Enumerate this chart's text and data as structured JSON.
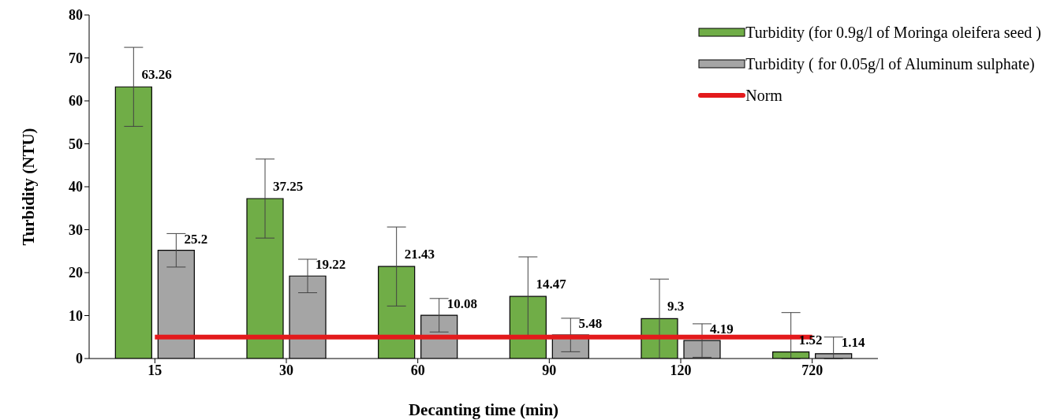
{
  "chart_data": {
    "type": "bar",
    "xlabel": "Decanting time (min)",
    "ylabel": "Turbidity (NTU)",
    "categories": [
      "15",
      "30",
      "60",
      "90",
      "120",
      "720"
    ],
    "series": [
      {
        "name": "Turbidity (for 0.9g/l of Moringa oleifera seed )",
        "color": "#70ad47",
        "values": [
          63.26,
          37.25,
          21.43,
          14.47,
          9.3,
          1.52
        ],
        "value_labels": [
          "63.26",
          "37.25",
          "21.43",
          "14.47",
          "9.3",
          "1.52"
        ],
        "errors": [
          9.2,
          9.2,
          9.2,
          9.2,
          9.2,
          [
            0,
            10.7
          ]
        ]
      },
      {
        "name": "Turbidity ( for 0.05g/l of Aluminum sulphate)",
        "color": "#a5a5a5",
        "values": [
          25.2,
          19.22,
          10.08,
          5.48,
          4.19,
          1.14
        ],
        "value_labels": [
          "25.2",
          "19.22",
          "10.08",
          "5.48",
          "4.19",
          "1.14"
        ],
        "errors": [
          3.9,
          3.9,
          3.9,
          3.9,
          3.9,
          [
            0,
            5.0
          ]
        ]
      },
      {
        "name": "Norm",
        "type": "line",
        "color": "#e31a1c",
        "values": [
          5,
          5,
          5,
          5,
          5,
          5
        ]
      }
    ],
    "ylim": [
      0,
      80
    ],
    "yticks": [
      0,
      10,
      20,
      30,
      40,
      50,
      60,
      70,
      80
    ],
    "legend": "top right",
    "marker": "none"
  }
}
